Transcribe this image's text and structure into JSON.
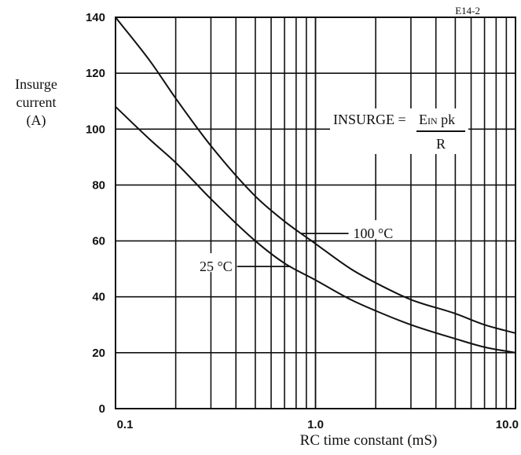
{
  "chart_data": {
    "type": "line",
    "corner_code": "E14-2",
    "title": "",
    "ylabel_lines": [
      "Insurge",
      "current",
      "(A)"
    ],
    "xlabel": "RC time constant (mS)",
    "xscale": "log",
    "xlim": [
      0.1,
      10.0
    ],
    "ylim": [
      0,
      140
    ],
    "x_tick_labels": [
      "0.1",
      "1.0",
      "10.0"
    ],
    "y_ticks": [
      0,
      20,
      40,
      60,
      80,
      100,
      120,
      140
    ],
    "y_tick_labels": [
      "0",
      "20",
      "40",
      "60",
      "80",
      "100",
      "120",
      "140"
    ],
    "grid": true,
    "formula": {
      "lhs": "INSURGE =",
      "numerator_main": "E",
      "numerator_sub": "IN",
      "numerator_rest": " pk",
      "denominator": "R"
    },
    "series": [
      {
        "name": "100 °C",
        "x": [
          0.1,
          0.15,
          0.2,
          0.3,
          0.5,
          0.7,
          1.0,
          1.5,
          2.0,
          3.0,
          5.0,
          7.0,
          10.0
        ],
        "y": [
          140,
          124,
          111,
          94,
          76,
          67,
          59,
          50,
          45,
          39,
          34,
          30,
          27
        ]
      },
      {
        "name": "25 °C",
        "x": [
          0.1,
          0.15,
          0.2,
          0.3,
          0.5,
          0.7,
          1.0,
          1.5,
          2.0,
          3.0,
          5.0,
          7.0,
          10.0
        ],
        "y": [
          108,
          96,
          88,
          75,
          60,
          52,
          46,
          39,
          35,
          30,
          25,
          22,
          20
        ]
      }
    ],
    "annotations": [
      {
        "text": "100 °C",
        "series": 0,
        "at_x": 0.85
      },
      {
        "text": "25 °C",
        "series": 1,
        "at_x": 0.75
      }
    ]
  }
}
